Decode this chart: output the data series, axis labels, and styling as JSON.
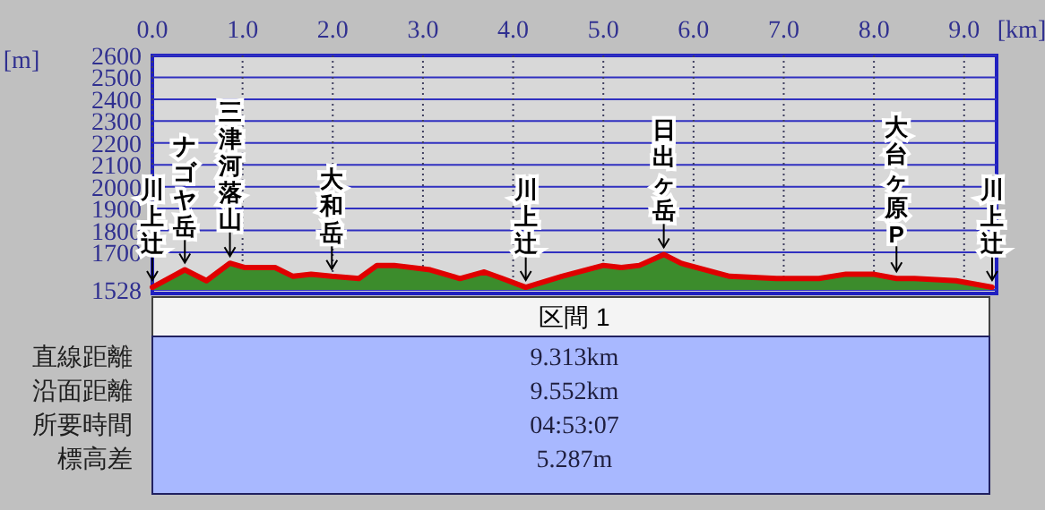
{
  "chart_data": {
    "type": "area",
    "xlabel": "[km]",
    "ylabel": "[m]",
    "x": [
      0,
      0.36,
      0.6,
      0.86,
      1.03,
      1.36,
      1.56,
      1.76,
      1.99,
      2.29,
      2.49,
      2.68,
      3.08,
      3.41,
      3.68,
      3.88,
      4.14,
      4.54,
      5.0,
      5.2,
      5.4,
      5.67,
      5.86,
      6.4,
      6.92,
      7.39,
      7.69,
      7.99,
      8.25,
      8.45,
      8.91,
      9.31
    ],
    "series": [
      {
        "color": "#3c8c2c",
        "values": [
          1540,
          1620,
          1570,
          1650,
          1630,
          1630,
          1590,
          1600,
          1590,
          1580,
          1640,
          1640,
          1620,
          1580,
          1610,
          1580,
          1540,
          1590,
          1640,
          1630,
          1640,
          1690,
          1650,
          1590,
          1580,
          1580,
          1600,
          1600,
          1580,
          1580,
          1570,
          1540
        ]
      },
      {
        "type": "line",
        "color": "#e00000",
        "values": [
          1540,
          1620,
          1570,
          1650,
          1630,
          1630,
          1590,
          1600,
          1590,
          1580,
          1640,
          1640,
          1620,
          1580,
          1610,
          1580,
          1540,
          1590,
          1640,
          1630,
          1640,
          1690,
          1650,
          1590,
          1580,
          1580,
          1600,
          1600,
          1580,
          1580,
          1570,
          1540
        ]
      }
    ],
    "xlim": [
      0,
      9.36
    ],
    "ylim": [
      1528,
      2600
    ],
    "xticks": [
      {
        "value": 0,
        "label": "0.0"
      },
      {
        "value": 1,
        "label": "1.0"
      },
      {
        "value": 2,
        "label": "2.0"
      },
      {
        "value": 3,
        "label": "3.0"
      },
      {
        "value": 4,
        "label": "4.0"
      },
      {
        "value": 5,
        "label": "5.0"
      },
      {
        "value": 6,
        "label": "6.0"
      },
      {
        "value": 7,
        "label": "7.0"
      },
      {
        "value": 8,
        "label": "8.0"
      },
      {
        "value": 9,
        "label": "9.0"
      }
    ],
    "yticks": [
      1528,
      1700,
      1800,
      1900,
      2000,
      2100,
      2200,
      2300,
      2400,
      2500,
      2600
    ],
    "grid": true,
    "annotations": [
      {
        "text": "川上辻",
        "x": 0,
        "y": 1540
      },
      {
        "text": "ナゴヤ岳",
        "x": 0.36,
        "y": 1620
      },
      {
        "text": "三津河落山",
        "x": 0.86,
        "y": 1650
      },
      {
        "text": "大和岳",
        "x": 1.99,
        "y": 1590
      },
      {
        "text": "川上辻",
        "x": 4.14,
        "y": 1540
      },
      {
        "text": "日出ヶ岳",
        "x": 5.67,
        "y": 1690
      },
      {
        "text": "大台ヶ原P",
        "x": 8.25,
        "y": 1580
      },
      {
        "text": "川上辻",
        "x": 9.31,
        "y": 1540
      },
      "区間 1",
      "直線距離",
      "9.313km",
      "沿面距離",
      "9.552km",
      "所要時間",
      "04:53:07",
      "標高差",
      "5.287m"
    ]
  }
}
